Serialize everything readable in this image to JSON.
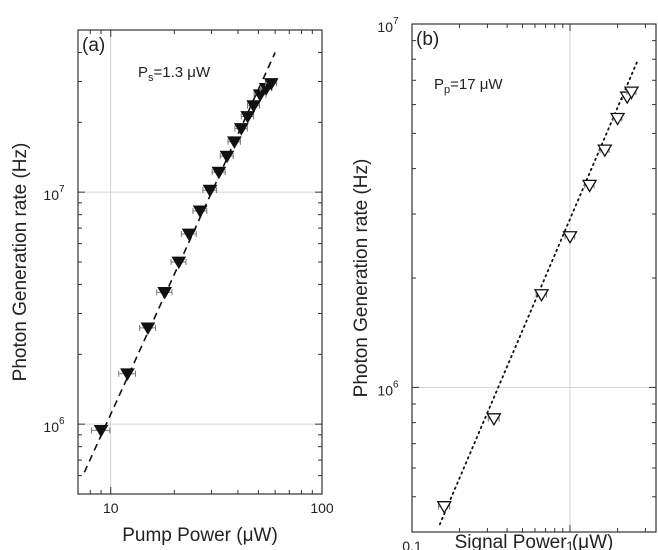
{
  "chart_data": [
    {
      "type": "scatter",
      "panel_label": "(a)",
      "title": "",
      "annotation": {
        "main": "P",
        "sub": "s",
        "rest": "=1.3 μW"
      },
      "xlabel": "Pump Power (μW)",
      "ylabel": "Photon Generation rate (Hz)",
      "xscale": "log",
      "yscale": "log",
      "xlim": [
        7,
        100
      ],
      "ylim": [
        500000,
        50000000
      ],
      "xticks": [
        {
          "value": 10,
          "label": "10"
        },
        {
          "value": 100,
          "label": "100"
        }
      ],
      "yticks": [
        {
          "value": 1000000,
          "base": "10",
          "exp": "6"
        },
        {
          "value": 10000000,
          "base": "10",
          "exp": "7"
        }
      ],
      "grid": true,
      "marker": "filled-down-triangle",
      "series": [
        {
          "x": [
            9,
            12,
            15,
            18,
            21,
            23.5,
            26.5,
            29.5,
            32.5,
            35.5,
            38.5,
            41.5,
            44.5,
            47.5,
            51,
            54.5,
            57.5
          ],
          "y": [
            940000,
            1650000,
            2600000,
            3700000,
            5000000,
            6600000,
            8300000,
            10200000,
            12200000,
            14300000,
            16500000,
            18800000,
            21200000,
            23600000,
            26300000,
            28000000,
            29400000
          ],
          "x_err": [
            0.9,
            1.1,
            1.3,
            1.5,
            1.7,
            1.9,
            2.0,
            2.2,
            2.3,
            2.5,
            2.6,
            2.8,
            3.0,
            3.1,
            3.3,
            3.4,
            3.5
          ]
        }
      ],
      "fit": {
        "style": "dashed",
        "x": [
          7.5,
          60
        ],
        "y": [
          620000,
          40000000
        ]
      }
    },
    {
      "type": "scatter",
      "panel_label": "(b)",
      "title": "",
      "annotation": {
        "main": "P",
        "sub": "p",
        "rest": "=17 μW"
      },
      "xlabel": "Signal Power (μW)",
      "ylabel": "Photon Generation rate (Hz)",
      "xscale": "log",
      "yscale": "log",
      "xlim": [
        0.1,
        3.5
      ],
      "ylim": [
        400000,
        10000000
      ],
      "xticks": [
        {
          "value": 0.1,
          "label": "0.1"
        },
        {
          "value": 1,
          "label": "1"
        }
      ],
      "yticks": [
        {
          "value": 1000000,
          "base": "10",
          "exp": "6"
        },
        {
          "value": 10000000,
          "base": "10",
          "exp": "7"
        }
      ],
      "grid": true,
      "marker": "open-down-triangle",
      "series": [
        {
          "x": [
            0.16,
            0.33,
            0.66,
            1.0,
            1.33,
            1.66,
            2.0,
            2.3,
            2.45
          ],
          "y": [
            470000,
            820000,
            1800000,
            2600000,
            3600000,
            4500000,
            5500000,
            6300000,
            6500000
          ],
          "x_err": [
            0.013,
            0.026,
            0.05,
            0.07,
            0.09,
            0.11,
            0.13,
            0.15,
            0.16
          ]
        }
      ],
      "fit": {
        "style": "dotted",
        "x": [
          0.15,
          2.7
        ],
        "y": [
          420000,
          8000000
        ]
      }
    }
  ]
}
